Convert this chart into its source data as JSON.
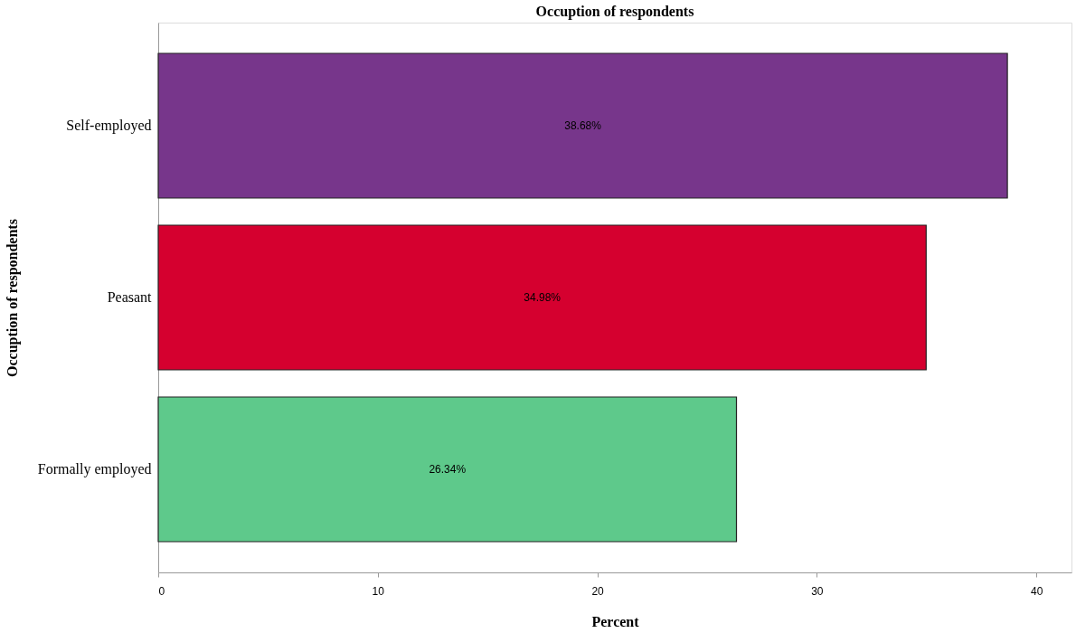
{
  "chart_data": {
    "type": "bar",
    "orientation": "horizontal",
    "title": "Occuption of respondents",
    "xlabel": "Percent",
    "ylabel": "Occuption of respondents",
    "categories": [
      "Self-employed",
      "Peasant",
      "Formally employed"
    ],
    "values": [
      38.68,
      34.98,
      26.34
    ],
    "colors": [
      "#77368b",
      "#d5002f",
      "#5ec98b"
    ],
    "value_labels": [
      "38.68%",
      "34.98%",
      "26.34%"
    ],
    "xlim": [
      0,
      41.6
    ],
    "xticks": [
      0,
      10,
      20,
      30,
      40
    ],
    "grid": false,
    "legend": false
  }
}
